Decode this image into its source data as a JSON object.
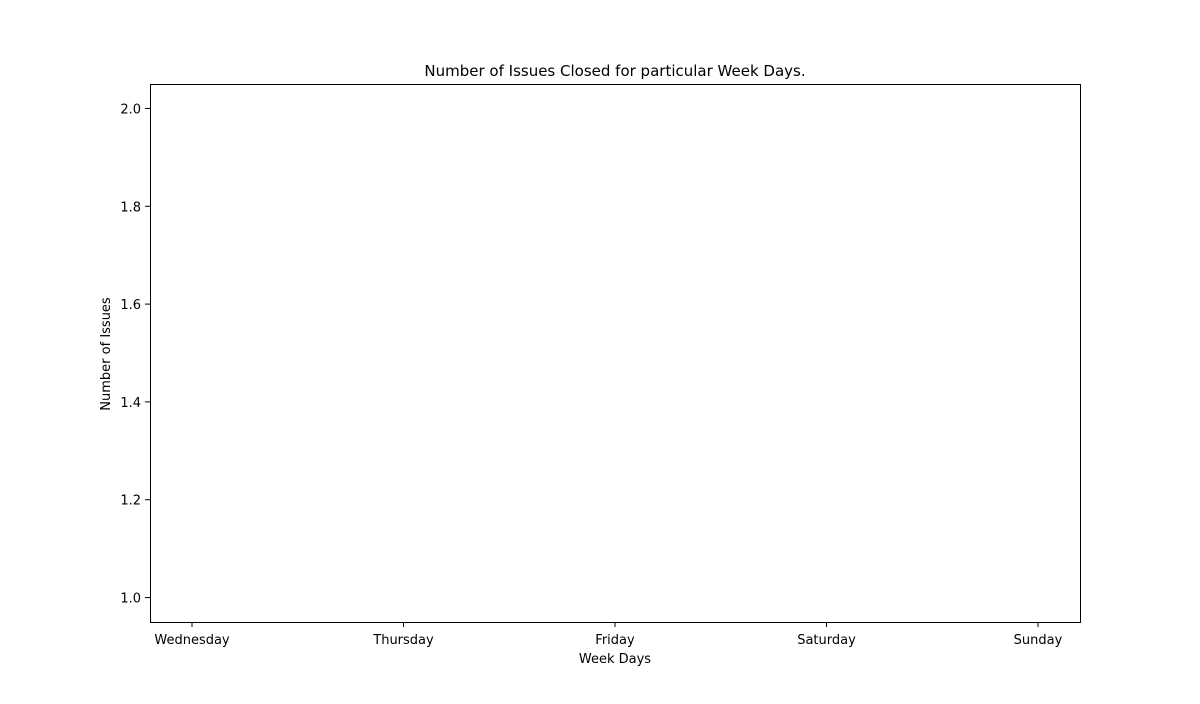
{
  "chart_data": {
    "type": "line",
    "title": "Number of Issues Closed for particular Week Days.",
    "xlabel": "Week Days",
    "ylabel": "Number of Issues",
    "categories": [
      "Wednesday",
      "Thursday",
      "Friday",
      "Saturday",
      "Sunday"
    ],
    "ylim": [
      0.95,
      2.05
    ],
    "yticks": [
      1.0,
      1.2,
      1.4,
      1.6,
      1.8,
      2.0
    ],
    "ytick_labels": [
      "1.0",
      "1.2",
      "1.4",
      "1.6",
      "1.8",
      "2.0"
    ],
    "series": [],
    "grid": false,
    "legend": "none"
  }
}
